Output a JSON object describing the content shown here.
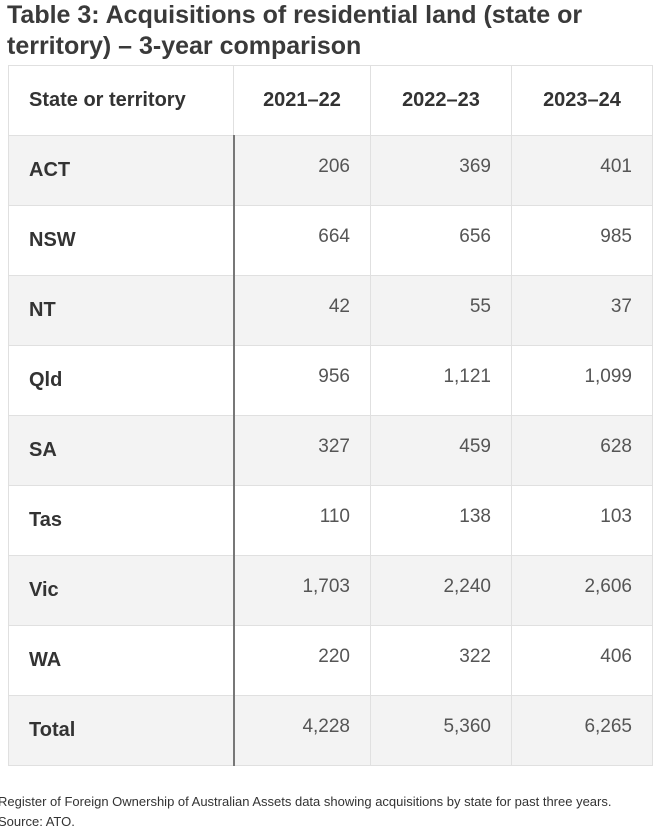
{
  "title": "Table 3: Acquisitions of residential land (state or territory) – 3-year comparison",
  "table": {
    "header": [
      "State or territory",
      "2021–22",
      "2022–23",
      "2023–24"
    ],
    "rows": [
      [
        "ACT",
        "206",
        "369",
        "401"
      ],
      [
        "NSW",
        "664",
        "656",
        "985"
      ],
      [
        "NT",
        "42",
        "55",
        "37"
      ],
      [
        "Qld",
        "956",
        "1,121",
        "1,099"
      ],
      [
        "SA",
        "327",
        "459",
        "628"
      ],
      [
        "Tas",
        "110",
        "138",
        "103"
      ],
      [
        "Vic",
        "1,703",
        "2,240",
        "2,606"
      ],
      [
        "WA",
        "220",
        "322",
        "406"
      ],
      [
        "Total",
        "4,228",
        "5,360",
        "6,265"
      ]
    ]
  },
  "caption": "Register of Foreign Ownership of Australian Assets data showing acquisitions by state for past three years. Source: ATO."
}
